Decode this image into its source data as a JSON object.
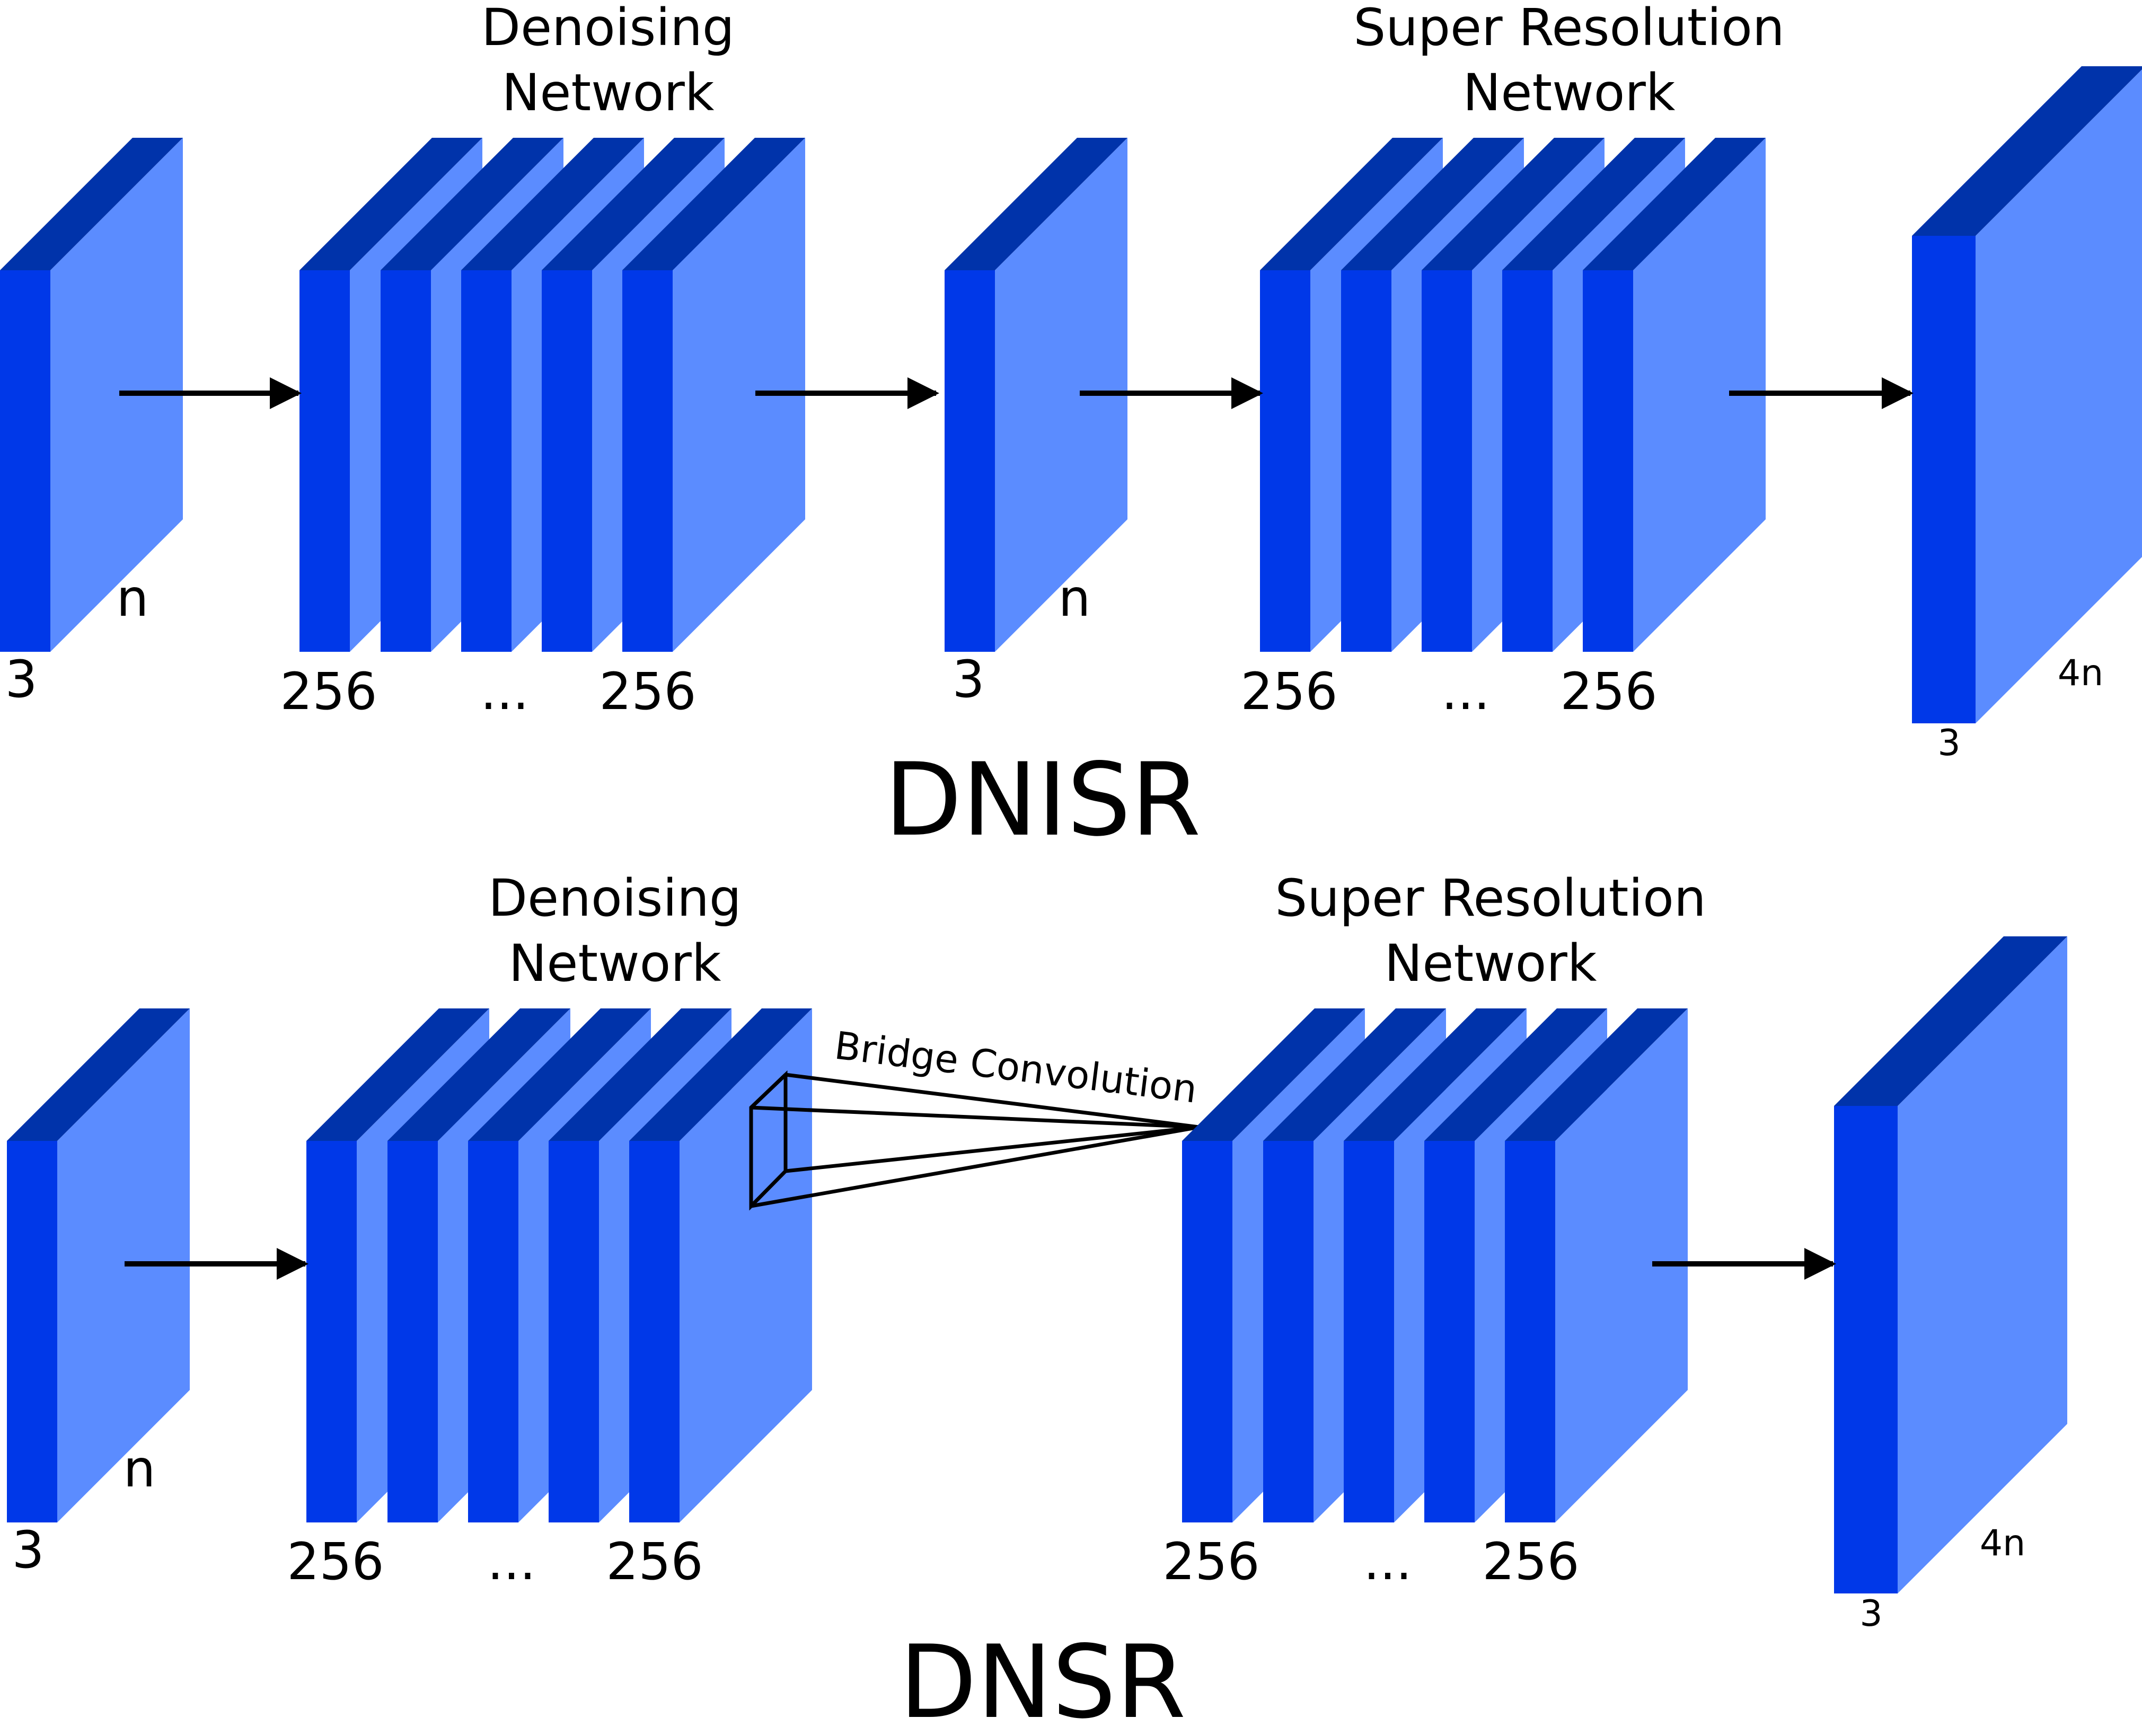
{
  "colors": {
    "front": "#0038E8",
    "top": "#0033AA",
    "side": "#5B8CFF",
    "line": "#000000"
  },
  "dnisr": {
    "title": "DNISR",
    "denoising_label": [
      "Denoising",
      "Network"
    ],
    "super_res_label": [
      "Super Resolution",
      "Network"
    ],
    "input": {
      "channels": "3",
      "size": "n"
    },
    "denoise_first_channels": "256",
    "denoise_ellipsis": "...",
    "denoise_last_channels": "256",
    "mid": {
      "channels": "3",
      "size": "n"
    },
    "sr_first_channels": "256",
    "sr_ellipsis": "...",
    "sr_last_channels": "256",
    "output": {
      "channels": "3",
      "size": "4n"
    }
  },
  "dnsr": {
    "title": "DNSR",
    "denoising_label": [
      "Denoising",
      "Network"
    ],
    "super_res_label": [
      "Super Resolution",
      "Network"
    ],
    "bridge_label": "Bridge Convolution",
    "input": {
      "channels": "3",
      "size": "n"
    },
    "denoise_first_channels": "256",
    "denoise_ellipsis": "...",
    "denoise_last_channels": "256",
    "sr_first_channels": "256",
    "sr_ellipsis": "...",
    "sr_last_channels": "256",
    "output": {
      "channels": "3",
      "size": "4n"
    }
  }
}
